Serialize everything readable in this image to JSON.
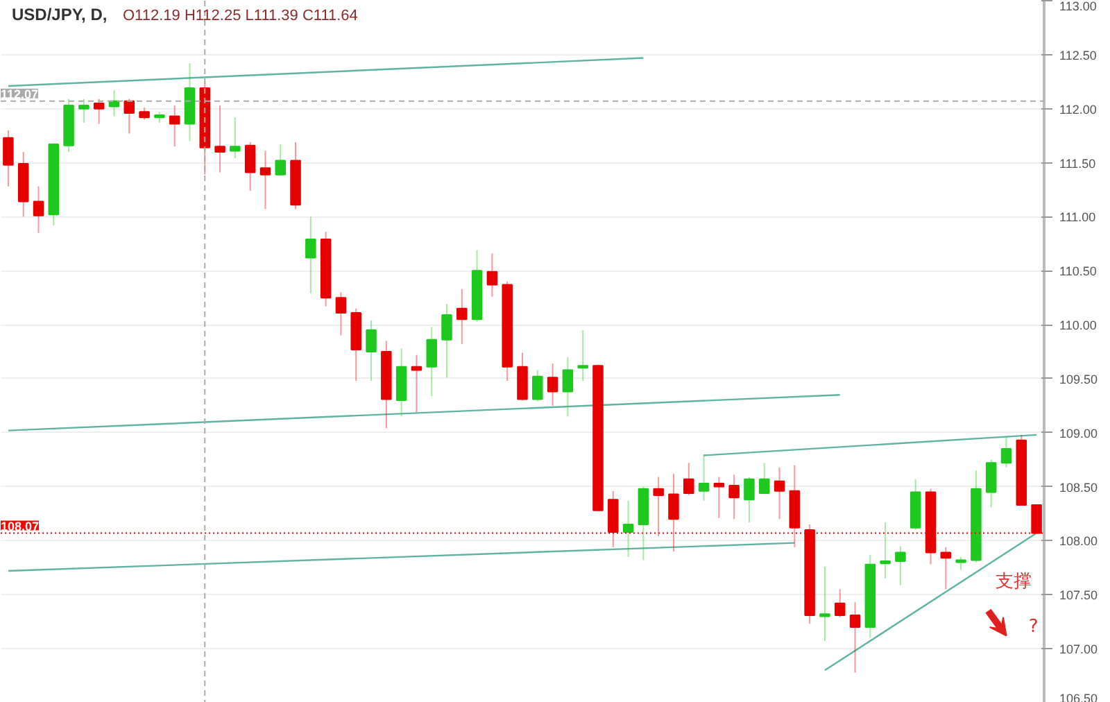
{
  "chart_data": {
    "type": "candlestick",
    "title": "USD/JPY, D,",
    "subtitle": "O112.19 H112.25 L111.39 C111.64",
    "categories": [
      null,
      null,
      null,
      null,
      null,
      null,
      null,
      null,
      null,
      null,
      null,
      null,
      null,
      null,
      null,
      null,
      null,
      null,
      null,
      null,
      null,
      null,
      null,
      null,
      null,
      null,
      null,
      null,
      null,
      null,
      null,
      null,
      null,
      null,
      null,
      null,
      null,
      null,
      null,
      null,
      null,
      null,
      null,
      null,
      null,
      null,
      null,
      null,
      null,
      null,
      null,
      null,
      null,
      null,
      null,
      null,
      null,
      null,
      null,
      null,
      null,
      null,
      null,
      null,
      null,
      null,
      null,
      null,
      null
    ],
    "ohlc": [
      [
        111.73,
        111.8,
        111.28,
        111.48
      ],
      [
        111.49,
        111.6,
        111.0,
        111.14
      ],
      [
        111.14,
        111.28,
        110.85,
        111.01
      ],
      [
        111.02,
        111.68,
        110.92,
        111.67
      ],
      [
        111.66,
        112.09,
        111.6,
        112.03
      ],
      [
        112.0,
        112.09,
        111.87,
        112.03
      ],
      [
        112.05,
        112.09,
        111.86,
        112.0
      ],
      [
        112.02,
        112.17,
        111.93,
        112.07
      ],
      [
        112.07,
        112.09,
        111.77,
        111.96
      ],
      [
        111.97,
        112.01,
        111.9,
        111.92
      ],
      [
        111.92,
        111.97,
        111.87,
        111.94
      ],
      [
        111.93,
        112.03,
        111.65,
        111.86
      ],
      [
        111.86,
        112.42,
        111.7,
        112.19
      ],
      [
        112.19,
        112.25,
        111.39,
        111.64
      ],
      [
        111.65,
        112.03,
        111.41,
        111.6
      ],
      [
        111.61,
        111.92,
        111.54,
        111.65
      ],
      [
        111.66,
        111.69,
        111.24,
        111.41
      ],
      [
        111.45,
        111.61,
        111.07,
        111.39
      ],
      [
        111.39,
        111.67,
        111.38,
        111.52
      ],
      [
        111.52,
        111.69,
        111.07,
        111.11
      ],
      [
        110.62,
        111.0,
        110.29,
        110.79
      ],
      [
        110.79,
        110.86,
        110.17,
        110.25
      ],
      [
        110.25,
        110.3,
        109.9,
        110.11
      ],
      [
        110.11,
        110.15,
        109.48,
        109.77
      ],
      [
        109.75,
        110.04,
        109.48,
        109.95
      ],
      [
        109.75,
        109.85,
        109.04,
        109.31
      ],
      [
        109.3,
        109.78,
        109.15,
        109.61
      ],
      [
        109.61,
        109.72,
        109.19,
        109.58
      ],
      [
        109.61,
        109.98,
        109.34,
        109.86
      ],
      [
        109.86,
        110.19,
        109.51,
        110.09
      ],
      [
        110.15,
        110.33,
        109.82,
        110.05
      ],
      [
        110.05,
        110.69,
        110.03,
        110.5
      ],
      [
        110.49,
        110.66,
        110.26,
        110.37
      ],
      [
        110.37,
        110.4,
        109.48,
        109.61
      ],
      [
        109.61,
        109.74,
        109.3,
        109.31
      ],
      [
        109.31,
        109.58,
        109.29,
        109.52
      ],
      [
        109.51,
        109.64,
        109.25,
        109.38
      ],
      [
        109.38,
        109.7,
        109.15,
        109.58
      ],
      [
        109.6,
        109.95,
        109.48,
        109.62
      ],
      [
        109.62,
        109.63,
        108.28,
        108.28
      ],
      [
        108.38,
        108.46,
        107.94,
        108.08
      ],
      [
        108.08,
        108.37,
        107.85,
        108.15
      ],
      [
        108.15,
        108.5,
        107.82,
        108.48
      ],
      [
        108.48,
        108.59,
        108.04,
        108.42
      ],
      [
        108.43,
        108.62,
        107.9,
        108.2
      ],
      [
        108.57,
        108.72,
        108.42,
        108.44
      ],
      [
        108.46,
        108.8,
        108.37,
        108.53
      ],
      [
        108.53,
        108.59,
        108.21,
        108.5
      ],
      [
        108.51,
        108.61,
        108.2,
        108.4
      ],
      [
        108.38,
        108.59,
        108.17,
        108.57
      ],
      [
        108.44,
        108.72,
        108.43,
        108.57
      ],
      [
        108.55,
        108.68,
        108.2,
        108.46
      ],
      [
        108.46,
        108.7,
        107.94,
        108.12
      ],
      [
        108.1,
        108.15,
        107.23,
        107.31
      ],
      [
        107.3,
        107.76,
        107.07,
        107.32
      ],
      [
        107.42,
        107.55,
        107.29,
        107.31
      ],
      [
        107.31,
        107.43,
        106.78,
        107.2
      ],
      [
        107.2,
        107.87,
        107.1,
        107.78
      ],
      [
        107.79,
        108.17,
        107.65,
        107.81
      ],
      [
        107.81,
        107.95,
        107.59,
        107.89
      ],
      [
        108.12,
        108.57,
        108.1,
        108.45
      ],
      [
        108.45,
        108.48,
        107.78,
        107.89
      ],
      [
        107.89,
        107.94,
        107.55,
        107.84
      ],
      [
        107.8,
        107.85,
        107.73,
        107.82
      ],
      [
        107.82,
        108.65,
        107.8,
        108.48
      ],
      [
        108.45,
        108.75,
        108.31,
        108.72
      ],
      [
        108.72,
        108.96,
        108.68,
        108.85
      ],
      [
        108.93,
        108.98,
        108.33,
        108.33
      ],
      [
        108.33,
        108.33,
        108.07,
        108.07
      ]
    ],
    "colors": [
      "#e60000",
      "#e60000",
      "#e60000",
      "#1ec81e",
      "#1ec81e",
      "#1ec81e",
      "#e60000",
      "#1ec81e",
      "#e60000",
      "#e60000",
      "#1ec81e",
      "#e60000",
      "#1ec81e",
      "#e60000",
      "#e60000",
      "#1ec81e",
      "#e60000",
      "#e60000",
      "#1ec81e",
      "#e60000",
      "#1ec81e",
      "#e60000",
      "#e60000",
      "#e60000",
      "#1ec81e",
      "#e60000",
      "#1ec81e",
      "#e60000",
      "#1ec81e",
      "#1ec81e",
      "#e60000",
      "#1ec81e",
      "#e60000",
      "#e60000",
      "#e60000",
      "#1ec81e",
      "#e60000",
      "#1ec81e",
      "#1ec81e",
      "#e60000",
      "#e60000",
      "#1ec81e",
      "#1ec81e",
      "#e60000",
      "#e60000",
      "#e60000",
      "#1ec81e",
      "#e60000",
      "#e60000",
      "#1ec81e",
      "#1ec81e",
      "#e60000",
      "#e60000",
      "#e60000",
      "#1ec81e",
      "#e60000",
      "#e60000",
      "#1ec81e",
      "#1ec81e",
      "#1ec81e",
      "#1ec81e",
      "#e60000",
      "#e60000",
      "#1ec81e",
      "#1ec81e",
      "#1ec81e",
      "#1ec81e",
      "#e60000",
      "#e60000"
    ],
    "series": [
      {
        "type": "line",
        "color": "#5fb3a3",
        "values": [
          112.21,
          null,
          null,
          null,
          null,
          null,
          null,
          null,
          null,
          null,
          null,
          null,
          null,
          null,
          null,
          null,
          null,
          null,
          null,
          null,
          null,
          null,
          null,
          null,
          null,
          null,
          null,
          null,
          null,
          null,
          null,
          null,
          null,
          null,
          null,
          null,
          null,
          null,
          null,
          null,
          null,
          null,
          112.47,
          null,
          null,
          null,
          null,
          null,
          null,
          null,
          null,
          null,
          null,
          null,
          null,
          null,
          null,
          null,
          null,
          null,
          null,
          null,
          null,
          null,
          null,
          null,
          null,
          null,
          null
        ]
      },
      {
        "type": "line",
        "color": "#5fb3a3",
        "values": [
          109.02,
          null,
          null,
          null,
          null,
          null,
          null,
          null,
          null,
          null,
          null,
          null,
          null,
          null,
          null,
          null,
          null,
          null,
          null,
          null,
          null,
          null,
          null,
          null,
          null,
          null,
          null,
          null,
          null,
          null,
          null,
          null,
          null,
          null,
          null,
          null,
          null,
          null,
          null,
          null,
          null,
          null,
          null,
          null,
          null,
          null,
          null,
          null,
          null,
          null,
          null,
          null,
          null,
          null,
          null,
          109.35,
          null,
          null,
          null,
          null,
          null,
          null,
          null,
          null,
          null,
          null,
          null,
          null,
          null
        ]
      },
      {
        "type": "line",
        "color": "#5fb3a3",
        "values": [
          null,
          null,
          null,
          null,
          null,
          null,
          null,
          null,
          null,
          null,
          null,
          null,
          null,
          null,
          null,
          null,
          null,
          null,
          null,
          null,
          null,
          null,
          null,
          null,
          null,
          null,
          null,
          null,
          null,
          null,
          null,
          null,
          null,
          null,
          null,
          null,
          null,
          null,
          null,
          null,
          null,
          null,
          null,
          null,
          null,
          null,
          108.79,
          null,
          null,
          null,
          null,
          null,
          null,
          null,
          null,
          null,
          null,
          null,
          null,
          null,
          null,
          null,
          null,
          null,
          null,
          null,
          null,
          null,
          108.98
        ]
      },
      {
        "type": "line",
        "color": "#5fb3a3",
        "values": [
          107.72,
          null,
          null,
          null,
          null,
          null,
          null,
          null,
          null,
          null,
          null,
          null,
          null,
          null,
          null,
          null,
          null,
          null,
          null,
          null,
          null,
          null,
          null,
          null,
          null,
          null,
          null,
          null,
          null,
          null,
          null,
          null,
          null,
          null,
          null,
          null,
          null,
          null,
          null,
          null,
          null,
          null,
          null,
          null,
          null,
          null,
          null,
          null,
          null,
          null,
          null,
          null,
          107.98,
          null,
          null,
          null,
          null,
          null,
          null,
          null,
          null,
          null,
          null,
          null,
          null,
          null,
          null,
          null,
          null
        ]
      },
      {
        "type": "line",
        "color": "#5fb3a3",
        "values": [
          null,
          null,
          null,
          null,
          null,
          null,
          null,
          null,
          null,
          null,
          null,
          null,
          null,
          null,
          null,
          null,
          null,
          null,
          null,
          null,
          null,
          null,
          null,
          null,
          null,
          null,
          null,
          null,
          null,
          null,
          null,
          null,
          null,
          null,
          null,
          null,
          null,
          null,
          null,
          null,
          null,
          null,
          null,
          null,
          null,
          null,
          null,
          null,
          null,
          null,
          null,
          null,
          null,
          null,
          106.8,
          null,
          null,
          null,
          null,
          null,
          null,
          null,
          null,
          null,
          null,
          null,
          null,
          null,
          108.07
        ]
      }
    ],
    "ref_lines": [
      {
        "axis": "y",
        "value": 112.07,
        "label": "112.07",
        "color": "#aaaaaa",
        "line_style": "dashed"
      },
      {
        "axis": "y",
        "value": 108.07,
        "label": "108.07",
        "color": "#ff0000",
        "line_style": "dotted"
      }
    ],
    "annotations": [
      "支撑",
      "?"
    ],
    "ylim": [
      106.5,
      113.0
    ],
    "yticks": [
      {
        "value": 106.5,
        "label": "106.50"
      },
      {
        "value": 107,
        "label": "107.00"
      },
      {
        "value": 107.5,
        "label": "107.50"
      },
      {
        "value": 108,
        "label": "108.00"
      },
      {
        "value": 108.5,
        "label": "108.50"
      },
      {
        "value": 109,
        "label": "109.00"
      },
      {
        "value": 109.5,
        "label": "109.50"
      },
      {
        "value": 110,
        "label": "110.00"
      },
      {
        "value": 110.5,
        "label": "110.50"
      },
      {
        "value": 111,
        "label": "111.00"
      },
      {
        "value": 111.5,
        "label": "111.50"
      },
      {
        "value": 112,
        "label": "112.00"
      },
      {
        "value": 112.5,
        "label": "112.50"
      },
      {
        "value": 113,
        "label": "113.00"
      }
    ],
    "tick_labels": "y",
    "grid": "y"
  }
}
